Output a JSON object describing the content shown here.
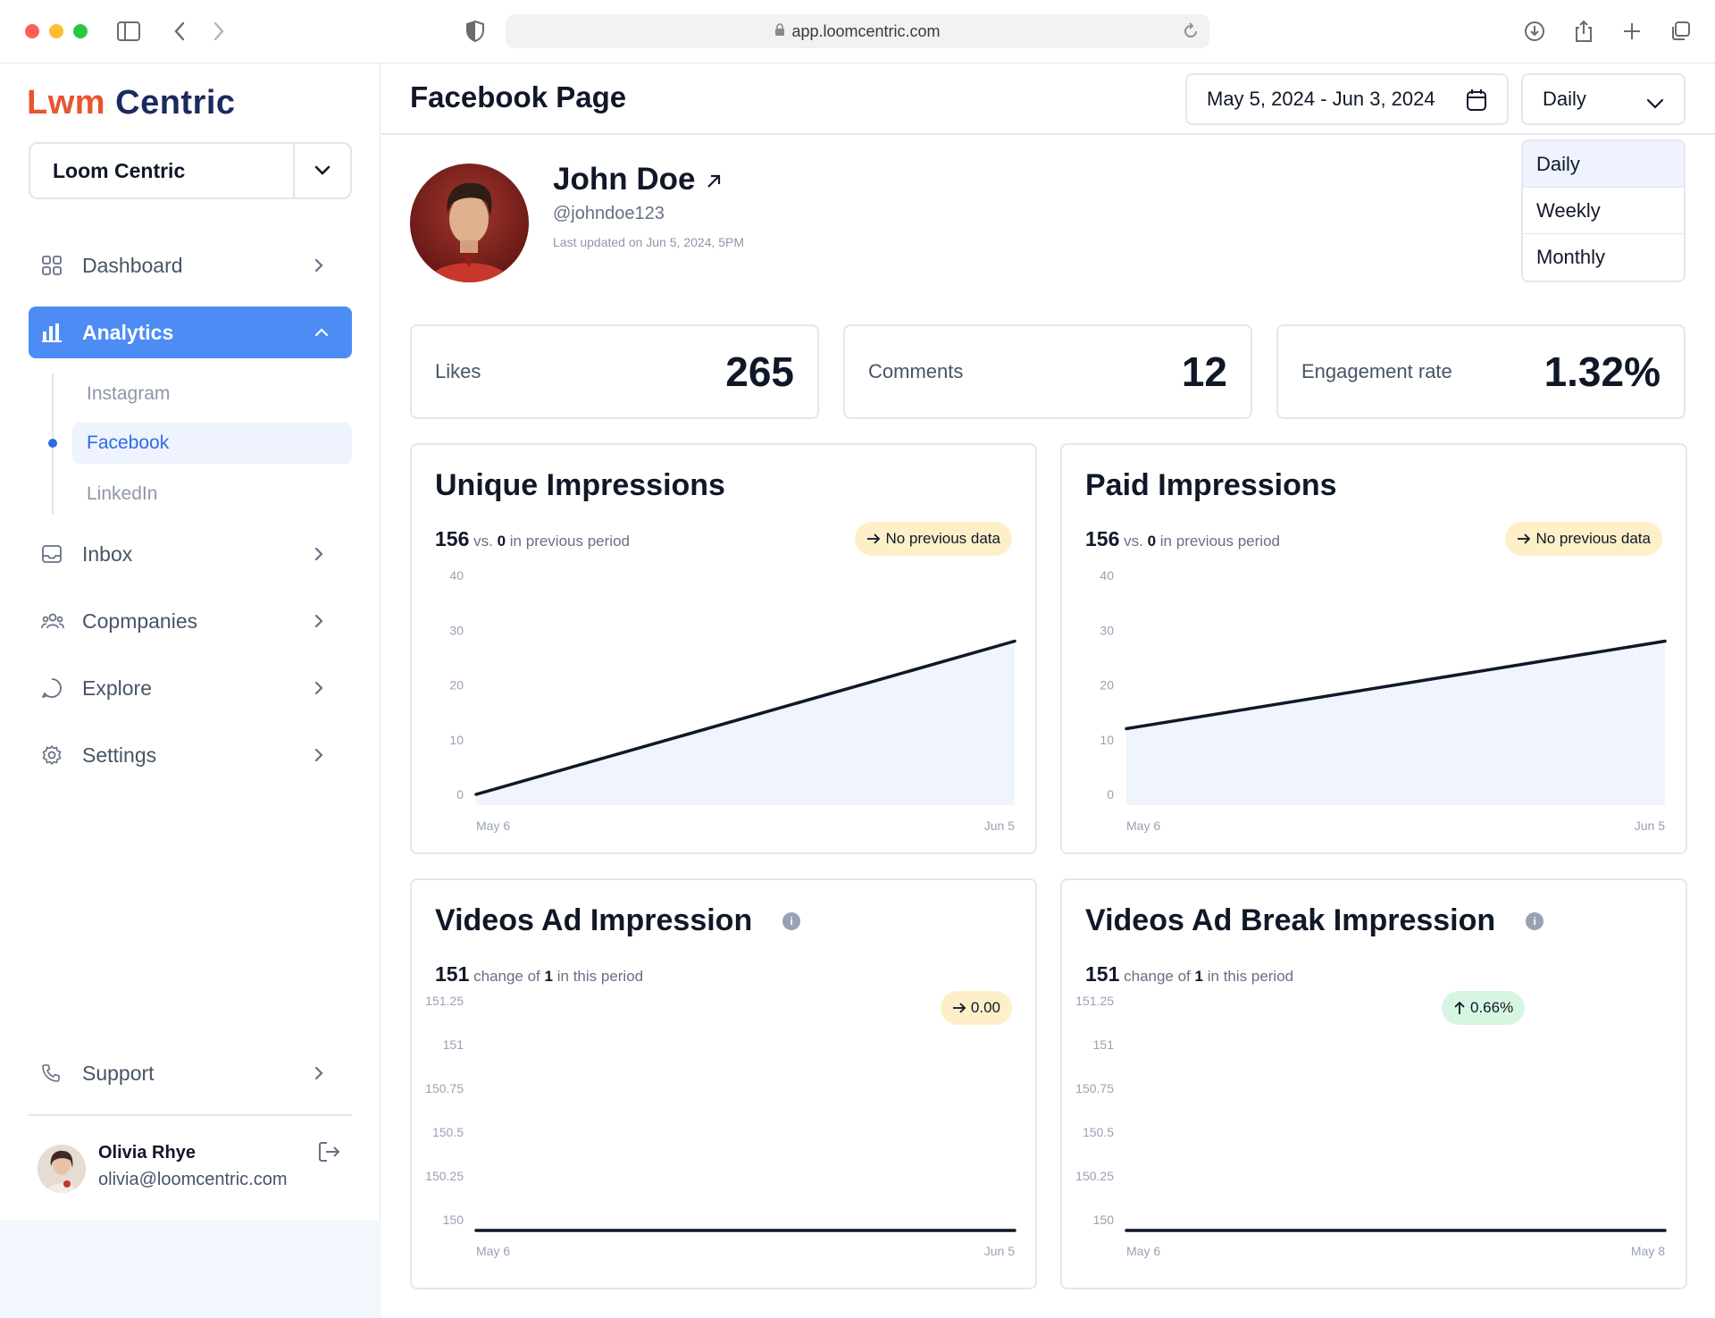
{
  "browser": {
    "url": "app.loomcentric.com"
  },
  "sidebar": {
    "logo_text_left": "Lwm",
    "logo_text_right": "Centric",
    "workspace": "Loom Centric",
    "items": [
      {
        "label": "Dashboard",
        "icon": "grid-icon"
      },
      {
        "label": "Analytics",
        "icon": "bar-chart-icon",
        "active": true
      },
      {
        "label": "Inbox",
        "icon": "inbox-icon"
      },
      {
        "label": "Copmpanies",
        "icon": "users-icon"
      },
      {
        "label": "Explore",
        "icon": "chat-icon"
      },
      {
        "label": "Settings",
        "icon": "gear-icon"
      }
    ],
    "subitems": [
      "Instagram",
      "Facebook",
      "LinkedIn"
    ],
    "support_label": "Support",
    "user": {
      "name": "Olivia Rhye",
      "email": "olivia@loomcentric.com"
    }
  },
  "header": {
    "title": "Facebook Page",
    "date_range": "May 5, 2024 - Jun 3, 2024",
    "period": "Daily",
    "period_options": [
      "Daily",
      "Weekly",
      "Monthly"
    ]
  },
  "profile": {
    "name": "John Doe",
    "handle": "@johndoe123",
    "updated": "Last updated on Jun 5, 2024, 5PM"
  },
  "stats": [
    {
      "label": "Likes",
      "value": "265"
    },
    {
      "label": "Comments",
      "value": "12"
    },
    {
      "label": "Engagement rate",
      "value": "1.32%"
    }
  ],
  "charts": [
    {
      "title": "Unique Impressions",
      "value": "156",
      "mid": "vs.",
      "compare": "0",
      "suffix": "in previous period",
      "pill": "No previous data",
      "pill_icon": "arrow-right-icon"
    },
    {
      "title": "Paid Impressions",
      "value": "156",
      "mid": "vs.",
      "compare": "0",
      "suffix": "in previous period",
      "pill": "No previous data",
      "pill_icon": "arrow-right-icon"
    },
    {
      "title": "Videos Ad Impression",
      "value": "151",
      "mid": "change of",
      "compare": "1",
      "suffix": "in this period",
      "pill": "0.00",
      "pill_icon": "arrow-right-icon"
    },
    {
      "title": "Videos Ad Break Impression",
      "value": "151",
      "mid": "change of",
      "compare": "1",
      "suffix": "in this period",
      "pill": "0.66%",
      "pill_icon": "arrow-up-icon"
    }
  ],
  "colors": {
    "accent": "#4d8cf5",
    "line": "#101828",
    "area": "#f0f4fc",
    "pill_yellow": "#fdf0c8",
    "pill_green": "#d7f6e2"
  },
  "chart_data": [
    {
      "type": "area",
      "title": "Unique Impressions",
      "x": [
        "May 6",
        "Jun 5"
      ],
      "y": [
        0,
        28
      ],
      "ylim": [
        0,
        40
      ],
      "yticks": [
        "0",
        "10",
        "20",
        "30",
        "40"
      ],
      "xticks": [
        "May 6",
        "Jun 5"
      ]
    },
    {
      "type": "area",
      "title": "Paid Impressions",
      "x": [
        "May 6",
        "Jun 5"
      ],
      "y": [
        12,
        28
      ],
      "ylim": [
        0,
        40
      ],
      "yticks": [
        "0",
        "10",
        "20",
        "30",
        "40"
      ],
      "xticks": [
        "May 6",
        "Jun 5"
      ]
    },
    {
      "type": "line",
      "title": "Videos Ad Impression",
      "x": [
        "May 6",
        "Jun 5"
      ],
      "y": [
        150,
        150
      ],
      "ylim": [
        150,
        151.25
      ],
      "yticks": [
        "150",
        "150.25",
        "150.5",
        "150.75",
        "151",
        "151.25"
      ],
      "xticks": [
        "May 6",
        "Jun 5"
      ]
    },
    {
      "type": "line",
      "title": "Videos Ad Break Impression",
      "x": [
        "May 6",
        "May 8"
      ],
      "y": [
        150,
        150
      ],
      "ylim": [
        150,
        151.25
      ],
      "yticks": [
        "150",
        "150.25",
        "150.5",
        "150.75",
        "151",
        "151.25"
      ],
      "xticks": [
        "May 6",
        "May 8"
      ]
    }
  ]
}
